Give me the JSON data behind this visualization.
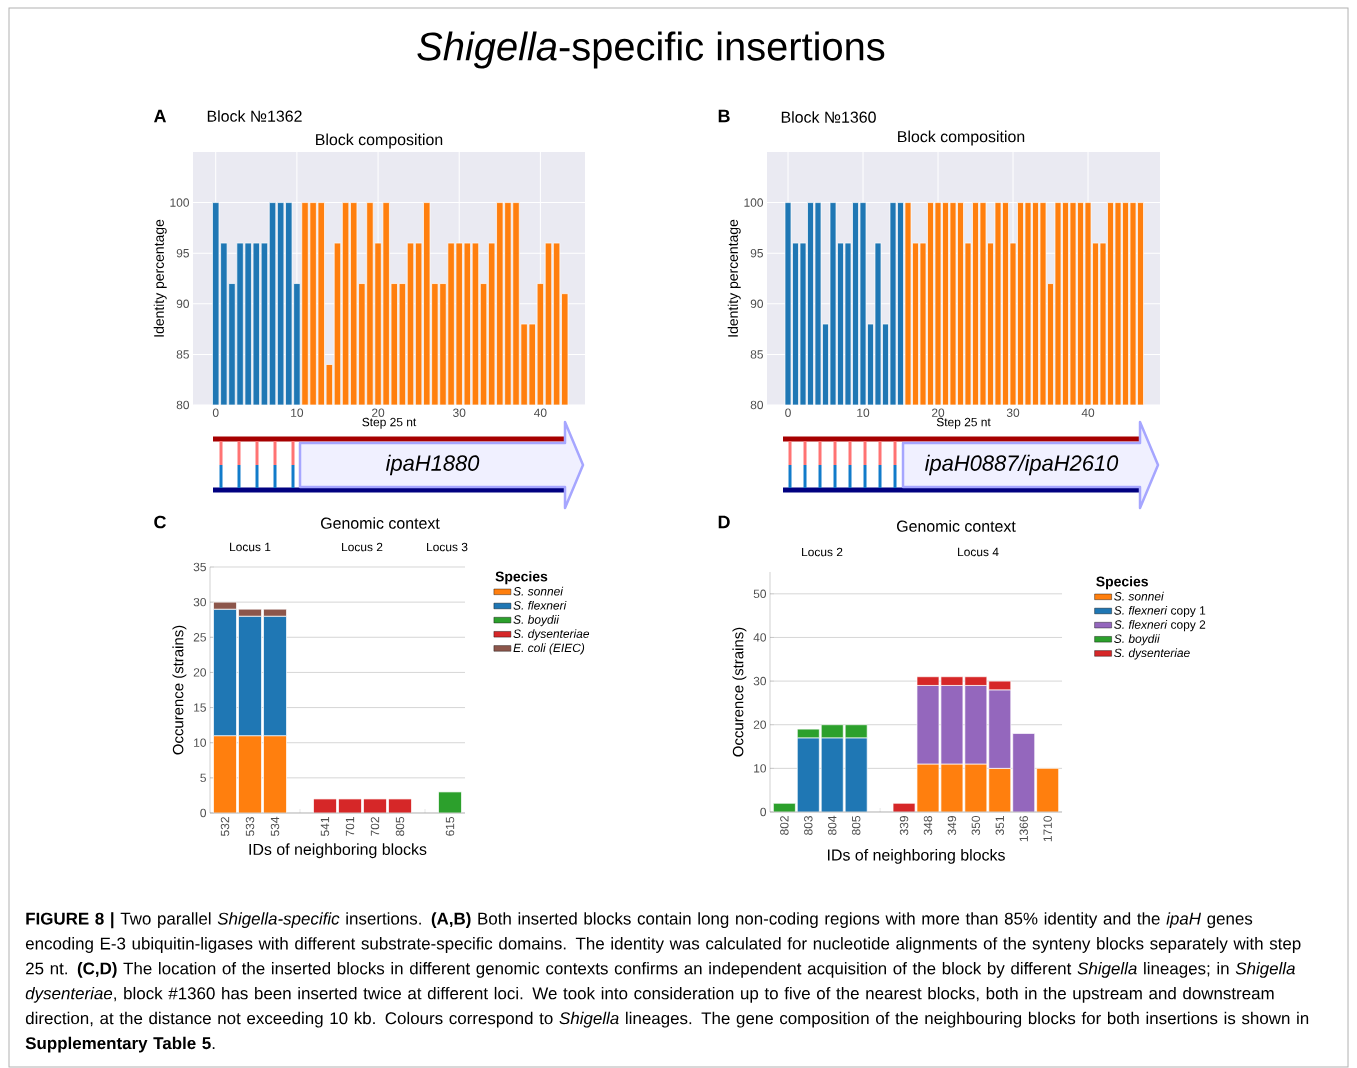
{
  "chart_data": [
    {
      "type": "bar",
      "title": "Block composition",
      "subtitle": "Block №1362",
      "xlabel": "Step 25 nt",
      "ylabel": "Identity percentage",
      "annotations": [
        "A",
        "ipaH1880",
        "*Shigella*-specific insertions",
        "**FIGURE 8 |** Two parallel *Shigella-specific* insertions. **(A,B)** Both inserted blocks contain long non-coding regions with more than 85% identity and the *ipaH* genes encoding E-3 ubiquitin-ligases with different substrate-specific domains. The identity was calculated for nucleotide alignments of the synteny blocks separately with step 25 nt. **(C,D)** The location of the inserted blocks in different genomic contexts confirms an independent acquisition of the block by different *Shigella* lineages; in *Shigella dysenteriae*, block #1360 has been inserted twice at different loci. We took into consideration up to five of the nearest blocks, both in the upstream and downstream direction, at the distance not exceeding 10 kb. Colours correspond to *Shigella* lineages. The gene composition of the neighbouring blocks for both insertions is shown in **Supplementary Table 5**."
      ],
      "xlim": [
        -2.8,
        45.5
      ],
      "ylim": [
        80,
        105
      ],
      "xticks": [
        0,
        10,
        20,
        30,
        40
      ],
      "yticks": [
        80,
        85,
        90,
        95,
        100
      ],
      "grid": true,
      "series": [
        {
          "color": "#1f77b4",
          "x": [
            0,
            1,
            2,
            3,
            4,
            5,
            6,
            7,
            8,
            9,
            10
          ],
          "values": [
            100,
            96,
            92,
            96,
            96,
            96,
            96,
            100,
            100,
            100,
            92
          ]
        },
        {
          "color": "#ff7f0e",
          "x": [
            11,
            12,
            13,
            14,
            15,
            16,
            17,
            18,
            19,
            20,
            21,
            22,
            23,
            24,
            25,
            26,
            27,
            28,
            29,
            30,
            31,
            32,
            33,
            34,
            35,
            36,
            37,
            38,
            39,
            40,
            41,
            42,
            43
          ],
          "values": [
            100,
            100,
            100,
            84,
            96,
            100,
            100,
            92,
            100,
            96,
            100,
            92,
            92,
            96,
            96,
            100,
            92,
            92,
            96,
            96,
            96,
            96,
            92,
            96,
            100,
            100,
            100,
            88,
            88,
            92,
            96,
            96,
            91
          ]
        }
      ]
    },
    {
      "type": "bar",
      "title": "Block composition",
      "subtitle": "Block №1360",
      "xlabel": "Step 25 nt",
      "ylabel": "Identity percentage",
      "annotations": [
        "B",
        "ipaH0887/ipaH2610"
      ],
      "xlim": [
        -2.8,
        49.6
      ],
      "ylim": [
        80,
        105
      ],
      "xticks": [
        0,
        10,
        20,
        30,
        40
      ],
      "yticks": [
        80,
        85,
        90,
        95,
        100
      ],
      "grid": true,
      "series": [
        {
          "color": "#1f77b4",
          "x": [
            0,
            1,
            2,
            3,
            4,
            5,
            6,
            7,
            8,
            9,
            10,
            11,
            12,
            13,
            14,
            15
          ],
          "values": [
            100,
            96,
            96,
            100,
            100,
            88,
            100,
            96,
            96,
            100,
            100,
            88,
            96,
            88,
            100,
            100
          ]
        },
        {
          "color": "#ff7f0e",
          "x": [
            16,
            17,
            18,
            19,
            20,
            21,
            22,
            23,
            24,
            25,
            26,
            27,
            28,
            29,
            30,
            31,
            32,
            33,
            34,
            35,
            36,
            37,
            38,
            39,
            40,
            41,
            42,
            43,
            44,
            45,
            46,
            47
          ],
          "values": [
            100,
            96,
            96,
            100,
            100,
            100,
            100,
            100,
            96,
            100,
            100,
            96,
            100,
            100,
            96,
            100,
            100,
            100,
            100,
            92,
            100,
            100,
            100,
            100,
            100,
            96,
            96,
            100,
            100,
            100,
            100,
            100
          ]
        }
      ]
    },
    {
      "type": "bar",
      "stacked": true,
      "title": "Genomic context",
      "xlabel": "IDs of neighboring blocks",
      "ylabel": "Occurence (strains)",
      "legend_title": "Species",
      "legend": "right",
      "grid": "y",
      "annotations": [
        "C",
        "Locus 1",
        "Locus 2",
        "Locus 3"
      ],
      "categories": [
        "532",
        "533",
        "534",
        null,
        "541",
        "701",
        "702",
        "805",
        null,
        "615"
      ],
      "ylim": [
        0,
        35
      ],
      "yticks": [
        0,
        5,
        10,
        15,
        20,
        25,
        30,
        35
      ],
      "series": [
        {
          "name": "*S. sonnei*",
          "color": "#ff7f0e",
          "values": [
            11,
            11,
            11,
            null,
            null,
            null,
            null,
            null,
            null,
            null
          ]
        },
        {
          "name": "*S. flexneri*",
          "color": "#1f77b4",
          "values": [
            18,
            17,
            17,
            null,
            null,
            null,
            null,
            null,
            null,
            null
          ]
        },
        {
          "name": "*S. boydii*",
          "color": "#2ca02c",
          "values": [
            null,
            null,
            null,
            null,
            null,
            null,
            null,
            null,
            null,
            3
          ]
        },
        {
          "name": "*S. dysenteriae*",
          "color": "#d62728",
          "values": [
            null,
            null,
            null,
            null,
            2,
            2,
            2,
            2,
            null,
            null
          ]
        },
        {
          "name": "*E. coli (EIEC)*",
          "color": "#8c564b",
          "values": [
            1,
            1,
            1,
            null,
            null,
            null,
            null,
            null,
            null,
            null
          ]
        }
      ]
    },
    {
      "type": "bar",
      "stacked": true,
      "title": "Genomic context",
      "xlabel": "IDs of neighboring blocks",
      "ylabel": "Occurence (strains)",
      "legend_title": "Species",
      "legend": "right",
      "grid": "y",
      "annotations": [
        "D",
        "Locus 2",
        "Locus 4"
      ],
      "categories": [
        "802",
        "803",
        "804",
        "805",
        null,
        "339",
        "348",
        "349",
        "350",
        "351",
        "1366",
        "1710"
      ],
      "ylim": [
        0,
        55
      ],
      "yticks": [
        0,
        10,
        20,
        30,
        40,
        50
      ],
      "series": [
        {
          "name": "*S. sonnei*",
          "color": "#ff7f0e",
          "values": [
            null,
            null,
            null,
            null,
            null,
            null,
            11,
            11,
            11,
            10,
            null,
            10
          ]
        },
        {
          "name": "*S. flexneri* copy 1",
          "color": "#1f77b4",
          "values": [
            null,
            17,
            17,
            17,
            null,
            null,
            null,
            null,
            null,
            null,
            null,
            null
          ]
        },
        {
          "name": "*S. flexneri* copy 2",
          "color": "#9467bd",
          "values": [
            null,
            null,
            null,
            null,
            null,
            null,
            18,
            18,
            18,
            18,
            18,
            null
          ]
        },
        {
          "name": "*S. boydii*",
          "color": "#2ca02c",
          "values": [
            2,
            2,
            3,
            3,
            null,
            null,
            null,
            null,
            null,
            null,
            null,
            null
          ]
        },
        {
          "name": "*S. dysenteriae*",
          "color": "#d62728",
          "values": [
            null,
            null,
            null,
            null,
            null,
            2,
            2,
            2,
            2,
            2,
            null,
            null
          ]
        }
      ]
    }
  ]
}
